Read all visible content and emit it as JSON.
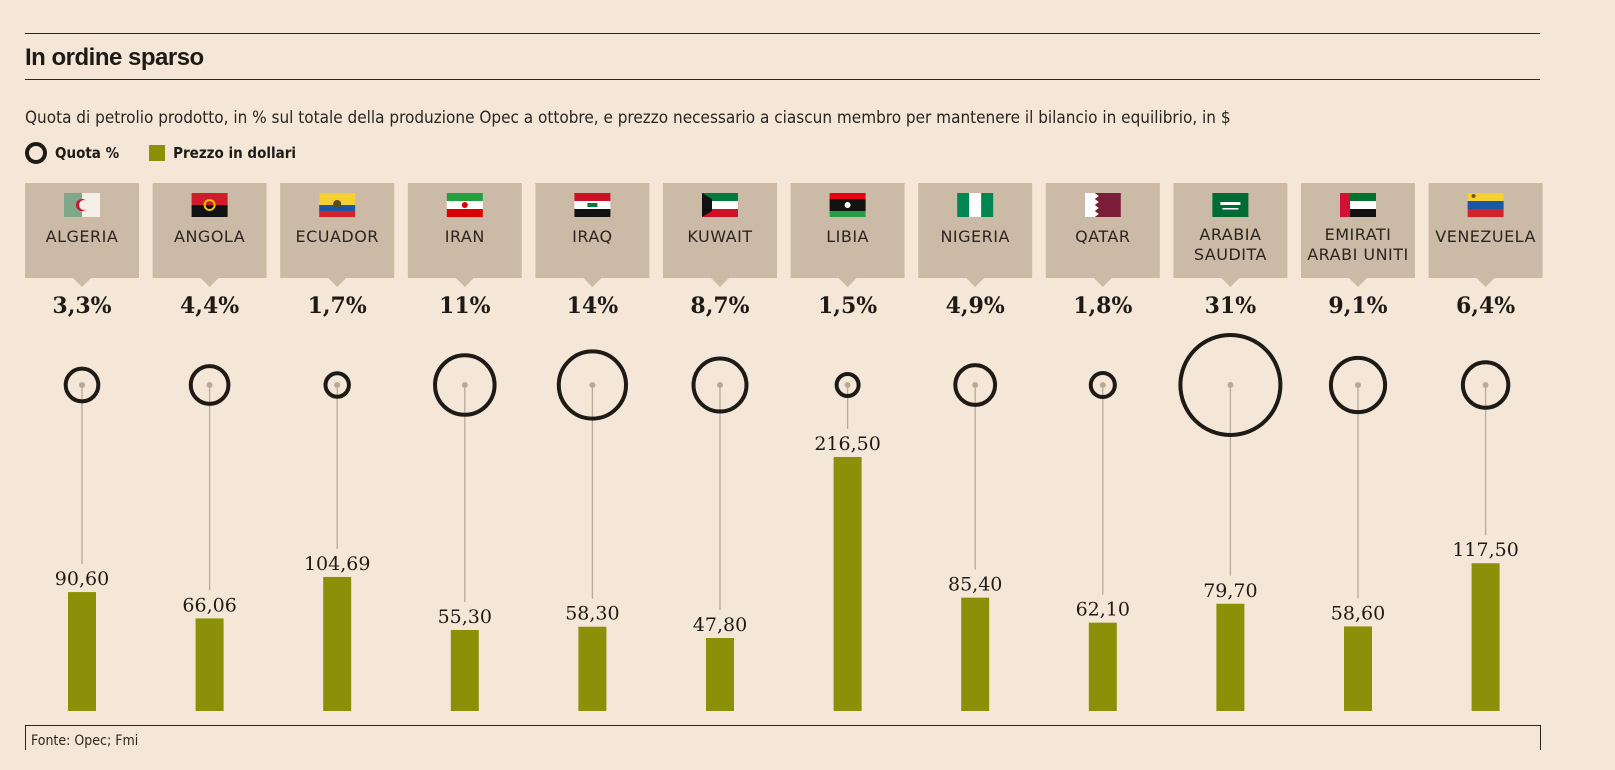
{
  "chart_data": {
    "type": "bar",
    "title": "In ordine sparso",
    "subtitle": "Quota di petrolio prodotto, in % sul totale della produzione Opec a ottobre, e prezzo necessario a ciascun membro per mantenere il bilancio in equilibrio, in $",
    "legend": [
      {
        "label": "Quota %",
        "shape": "circle"
      },
      {
        "label": "Prezzo in dollari",
        "shape": "square",
        "color": "#8a9108"
      }
    ],
    "legend_placement": "top-left",
    "categories": [
      "ALGERIA",
      "ANGOLA",
      "ECUADOR",
      "IRAN",
      "IRAQ",
      "KUWAIT",
      "LIBIA",
      "NIGERIA",
      "QATAR",
      "ARABIA SAUDITA",
      "EMIRATI ARABI UNITI",
      "VENEZUELA"
    ],
    "category_lines": [
      [
        "ALGERIA"
      ],
      [
        "ANGOLA"
      ],
      [
        "ECUADOR"
      ],
      [
        "IRAN"
      ],
      [
        "IRAQ"
      ],
      [
        "KUWAIT"
      ],
      [
        "LIBIA"
      ],
      [
        "NIGERIA"
      ],
      [
        "QATAR"
      ],
      [
        "ARABIA",
        "SAUDITA"
      ],
      [
        "EMIRATI",
        "ARABI UNITI"
      ],
      [
        "VENEZUELA"
      ]
    ],
    "flags": [
      "algeria-flag",
      "angola-flag",
      "ecuador-flag",
      "iran-flag",
      "iraq-flag",
      "kuwait-flag",
      "libya-flag",
      "nigeria-flag",
      "qatar-flag",
      "saudi-arabia-flag",
      "uae-flag",
      "venezuela-flag"
    ],
    "series": [
      {
        "name": "Quota %",
        "values": [
          3.3,
          4.4,
          1.7,
          11,
          14,
          8.7,
          1.5,
          4.9,
          1.8,
          31,
          9.1,
          6.4
        ],
        "labels": [
          "3,3%",
          "4,4%",
          "1,7%",
          "11%",
          "14%",
          "8,7%",
          "1,5%",
          "4,9%",
          "1,8%",
          "31%",
          "9,1%",
          "6,4%"
        ]
      },
      {
        "name": "Prezzo in dollari",
        "values": [
          90.6,
          66.06,
          104.69,
          55.3,
          58.3,
          47.8,
          216.5,
          85.4,
          62.1,
          79.7,
          58.6,
          117.5
        ],
        "labels": [
          "90,60",
          "66,06",
          "104,69",
          "55,30",
          "58,30",
          "47,80",
          "216,50",
          "85,40",
          "62,10",
          "79,70",
          "58,60",
          "117,50"
        ]
      }
    ],
    "source": "Fonte: Opec; Fmi",
    "colors": {
      "bar": "#8a9108",
      "box": "#cbbba6",
      "background": "#f4e7d7",
      "circle": "#1e1a16"
    }
  }
}
